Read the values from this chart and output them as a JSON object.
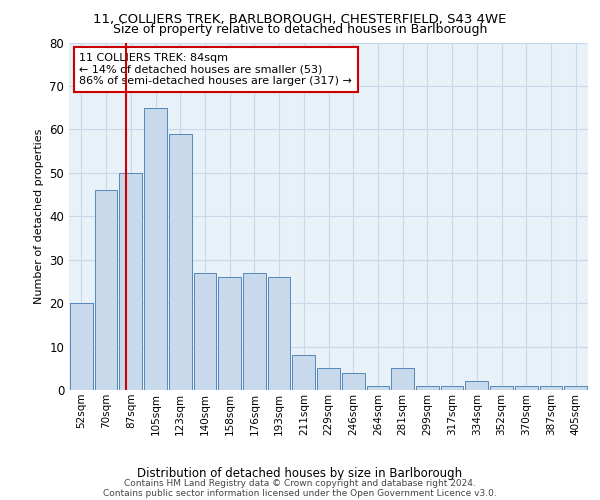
{
  "title_line1": "11, COLLIERS TREK, BARLBOROUGH, CHESTERFIELD, S43 4WE",
  "title_line2": "Size of property relative to detached houses in Barlborough",
  "xlabel": "Distribution of detached houses by size in Barlborough",
  "ylabel": "Number of detached properties",
  "categories": [
    "52sqm",
    "70sqm",
    "87sqm",
    "105sqm",
    "123sqm",
    "140sqm",
    "158sqm",
    "176sqm",
    "193sqm",
    "211sqm",
    "229sqm",
    "246sqm",
    "264sqm",
    "281sqm",
    "299sqm",
    "317sqm",
    "334sqm",
    "352sqm",
    "370sqm",
    "387sqm",
    "405sqm"
  ],
  "values": [
    20,
    46,
    50,
    65,
    59,
    27,
    26,
    27,
    26,
    8,
    5,
    4,
    1,
    5,
    1,
    1,
    2,
    1,
    1,
    1,
    1
  ],
  "bar_color": "#c9d9ec",
  "bar_edge_color": "#5588bb",
  "highlight_line_color": "#cc0000",
  "annotation_text": "11 COLLIERS TREK: 84sqm\n← 14% of detached houses are smaller (53)\n86% of semi-detached houses are larger (317) →",
  "annotation_box_color": "#ffffff",
  "annotation_box_edge": "#cc0000",
  "ylim": [
    0,
    80
  ],
  "yticks": [
    0,
    10,
    20,
    30,
    40,
    50,
    60,
    70,
    80
  ],
  "grid_color": "#c8d8e8",
  "background_color": "#e8f0f8",
  "fig_background": "#ffffff",
  "footer_line1": "Contains HM Land Registry data © Crown copyright and database right 2024.",
  "footer_line2": "Contains public sector information licensed under the Open Government Licence v3.0."
}
